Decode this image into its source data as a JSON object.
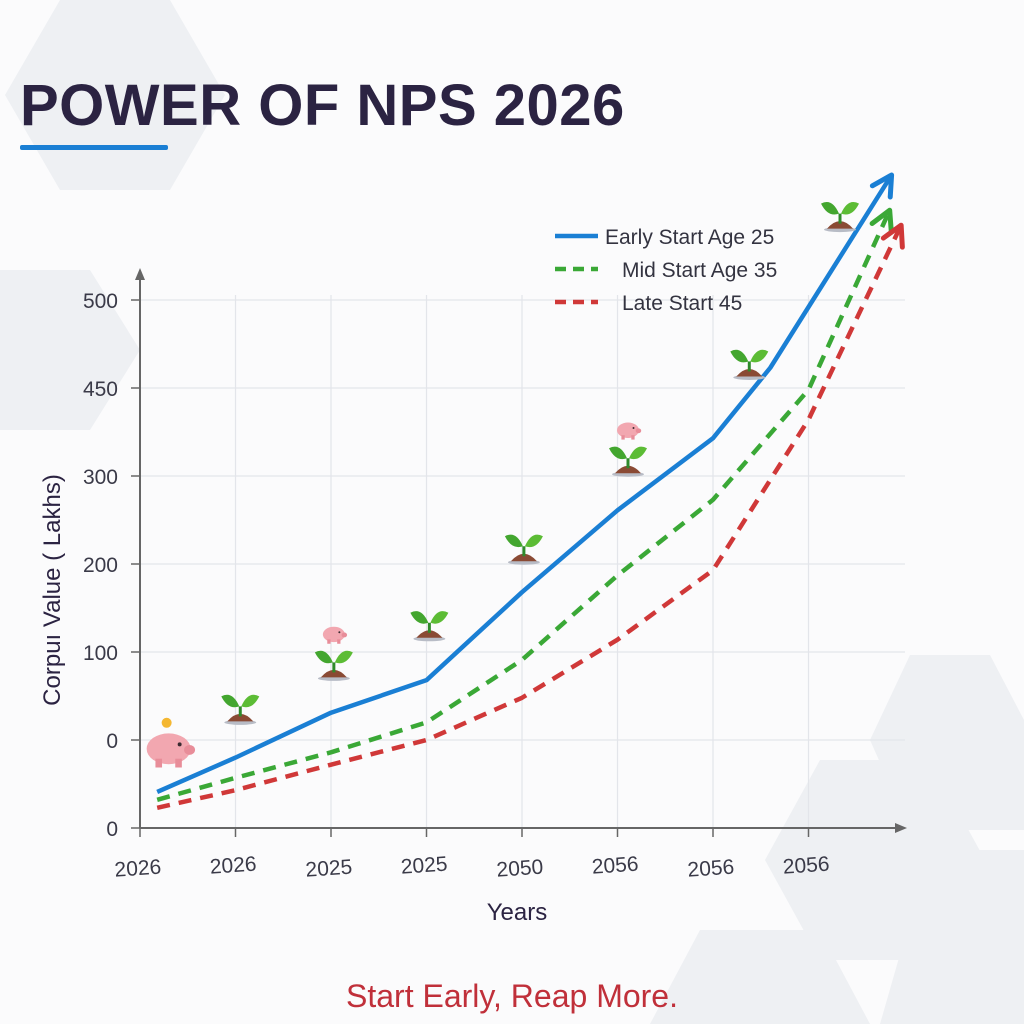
{
  "title": "POWER OF NPS 2026",
  "footer": "Start Early, Reap More.",
  "colors": {
    "title": "#2b2342",
    "accent": "#1a7fd4",
    "early": "#1a7fd4",
    "mid": "#3aa836",
    "late": "#d03838",
    "footer": "#c0303a"
  },
  "chart_data": {
    "type": "line",
    "xlabel": "Years",
    "ylabel": "Corpuı Value ( Lakhs)",
    "x_tick_labels": [
      "2026",
      "2026",
      "2025",
      "2025",
      "2050",
      "2056",
      "2056",
      "2056"
    ],
    "y_tick_labels": [
      "0",
      "0",
      "100",
      "200",
      "300",
      "450",
      "500"
    ],
    "grid": true,
    "legend_position": "top-right",
    "series": [
      {
        "name": "Early Start Age 25",
        "style": "solid",
        "color": "#1a7fd4",
        "x": [
          0.18,
          1,
          2,
          3,
          4,
          5,
          6,
          6.6,
          7.87
        ],
        "y": [
          41,
          80,
          131,
          168,
          268,
          361,
          443,
          523,
          742
        ]
      },
      {
        "name": "Mid Start  Age 35",
        "style": "dashed",
        "color": "#3aa836",
        "x": [
          0.18,
          1,
          2,
          3,
          4,
          5,
          6,
          7,
          7.85
        ],
        "y": [
          32,
          57,
          86,
          120,
          191,
          287,
          373,
          498,
          702
        ]
      },
      {
        "name": "Late Start   45",
        "style": "dashed",
        "color": "#d03838",
        "x": [
          0.18,
          1,
          2,
          3,
          4,
          5,
          6,
          7,
          7.97
        ],
        "y": [
          23,
          43,
          72,
          100,
          148,
          214,
          293,
          464,
          685
        ]
      }
    ],
    "icons": [
      {
        "type": "piggy-bank-coin",
        "x": 0.3,
        "y": 90
      },
      {
        "type": "sprout",
        "x": 1.05,
        "y": 120
      },
      {
        "type": "sprout-piggy",
        "x": 2.03,
        "y": 170
      },
      {
        "type": "sprout",
        "x": 3.03,
        "y": 215
      },
      {
        "type": "sprout",
        "x": 4.02,
        "y": 302
      },
      {
        "type": "sprout-piggy",
        "x": 5.11,
        "y": 402
      },
      {
        "type": "sprout",
        "x": 6.38,
        "y": 512
      },
      {
        "type": "sprout",
        "x": 7.33,
        "y": 680
      }
    ]
  }
}
